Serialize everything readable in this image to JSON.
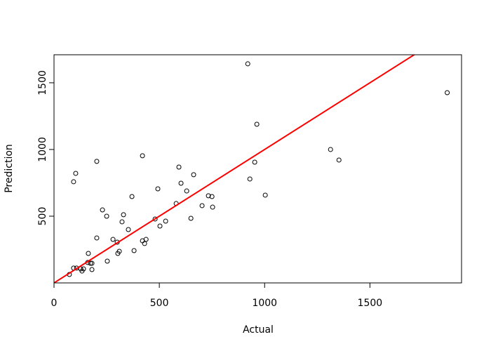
{
  "chart_data": {
    "type": "scatter",
    "x_label": "Actual",
    "y_label": "Prediction",
    "x": [
      73,
      93,
      107,
      127,
      133,
      140,
      160,
      163,
      173,
      180,
      180,
      93,
      103,
      203,
      203,
      230,
      250,
      253,
      280,
      300,
      303,
      310,
      323,
      330,
      353,
      370,
      380,
      420,
      420,
      430,
      437,
      480,
      493,
      503,
      530,
      580,
      593,
      603,
      630,
      650,
      663,
      703,
      733,
      750,
      753,
      920,
      930,
      953,
      963,
      1003,
      1313,
      1353,
      1867
    ],
    "y": [
      63,
      111,
      111,
      105,
      89,
      105,
      153,
      221,
      147,
      147,
      100,
      758,
      821,
      911,
      337,
      547,
      500,
      163,
      326,
      305,
      221,
      237,
      458,
      511,
      400,
      647,
      242,
      953,
      316,
      295,
      326,
      479,
      705,
      426,
      463,
      595,
      868,
      747,
      689,
      484,
      811,
      579,
      653,
      647,
      568,
      1642,
      779,
      905,
      1189,
      658,
      1000,
      921,
      1426
    ],
    "color": "#000000",
    "reference_line": {
      "slope": 1,
      "intercept": 0,
      "color": "#ff0000"
    },
    "xlim": [
      0,
      1935
    ],
    "ylim": [
      0,
      1710
    ],
    "xticks": [
      0,
      500,
      1000,
      1500
    ],
    "yticks": [
      500,
      1000,
      1500
    ]
  }
}
